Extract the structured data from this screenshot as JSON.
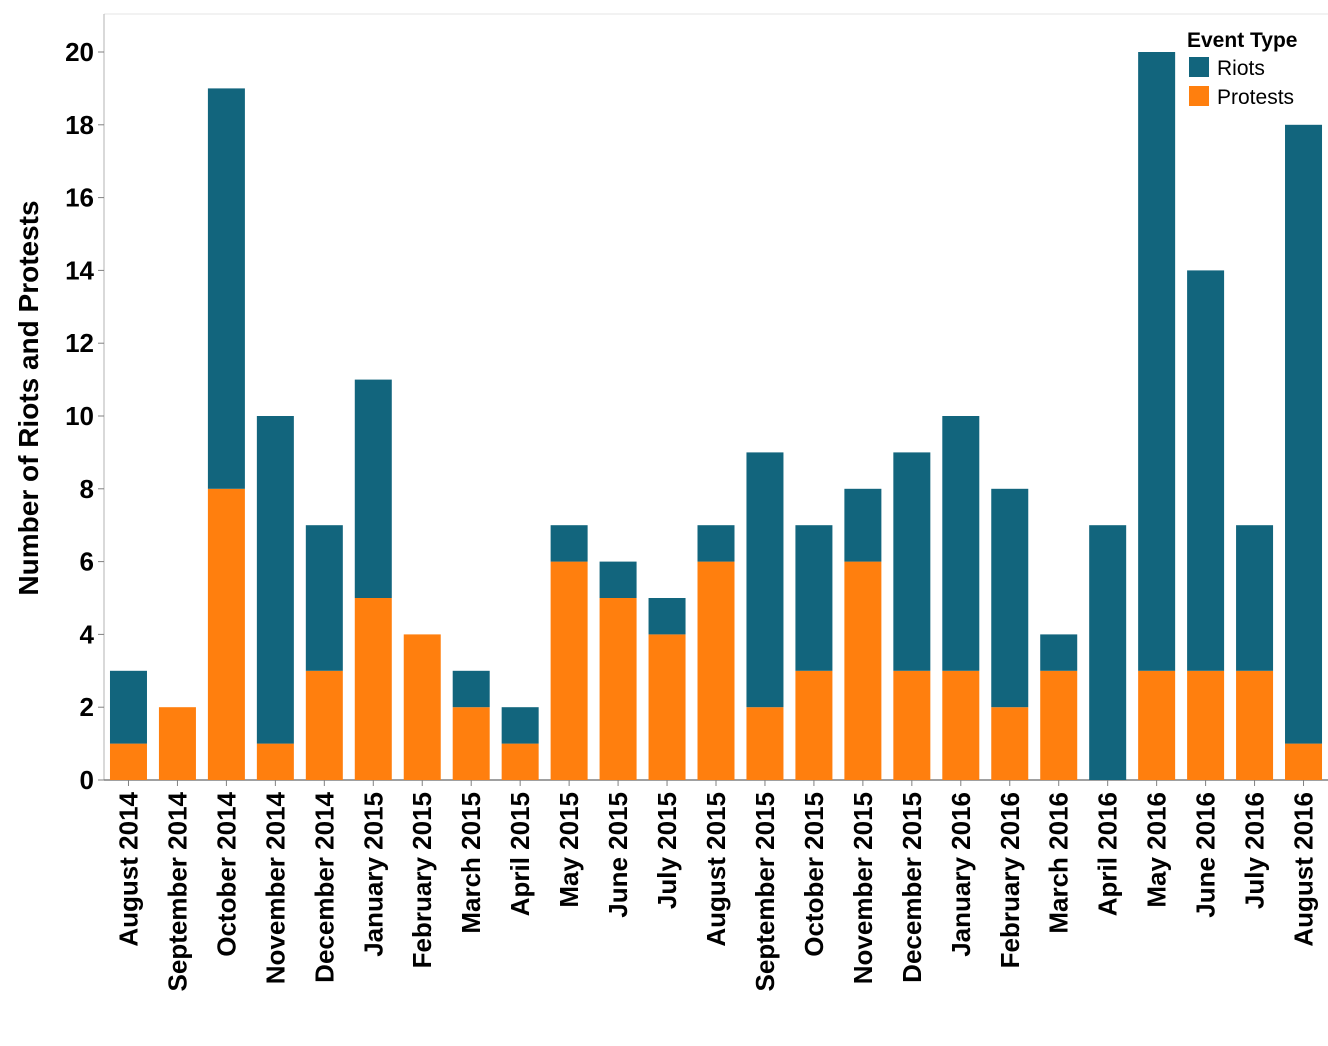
{
  "chart_data": {
    "type": "bar",
    "stacked": true,
    "categories": [
      "August 2014",
      "September 2014",
      "October 2014",
      "November 2014",
      "December 2014",
      "January 2015",
      "February 2015",
      "March 2015",
      "April 2015",
      "May 2015",
      "June 2015",
      "July 2015",
      "August 2015",
      "September 2015",
      "October 2015",
      "November 2015",
      "December 2015",
      "January 2016",
      "February 2016",
      "March 2016",
      "April 2016",
      "May 2016",
      "June 2016",
      "July 2016",
      "August 2016"
    ],
    "series": [
      {
        "name": "Protests",
        "color": "#ff7f0e",
        "values": [
          1,
          2,
          8,
          1,
          3,
          5,
          4,
          2,
          1,
          6,
          5,
          4,
          6,
          2,
          3,
          6,
          3,
          3,
          2,
          3,
          0,
          3,
          3,
          3,
          1
        ]
      },
      {
        "name": "Riots",
        "color": "#12657d",
        "values": [
          2,
          0,
          11,
          9,
          4,
          6,
          0,
          1,
          1,
          1,
          1,
          1,
          1,
          7,
          4,
          2,
          6,
          7,
          6,
          1,
          7,
          17,
          11,
          4,
          17
        ]
      }
    ],
    "ylabel": "Number of Riots and Protests",
    "xlabel": "",
    "ylim": [
      0,
      20
    ],
    "yticks": [
      "0",
      "2",
      "4",
      "6",
      "8",
      "10",
      "12",
      "14",
      "16",
      "18",
      "20"
    ],
    "legend": {
      "title": "Event Type",
      "placement": "top-right",
      "entries": [
        {
          "label": "Riots",
          "color": "#12657d"
        },
        {
          "label": "Protests",
          "color": "#ff7f0e"
        }
      ]
    },
    "grid": false
  }
}
